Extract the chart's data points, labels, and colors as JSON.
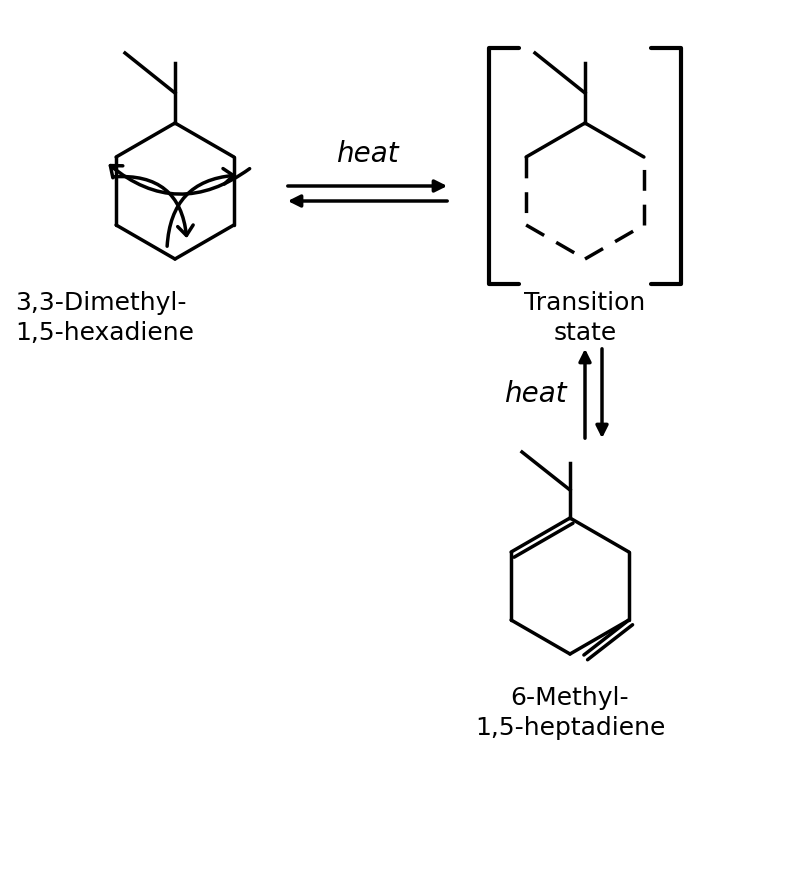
{
  "title": "",
  "background_color": "#ffffff",
  "label_left": "3,3-Dimethyl-\n1,5-hexadiene",
  "label_middle": "Transition\nstate",
  "label_bottom": "6-Methyl-\n1,5-heptadiene",
  "heat_label_top": "heat",
  "heat_label_bottom": "heat",
  "label_fontsize": 18,
  "heat_fontsize": 20,
  "line_color": "#000000",
  "lw": 2.5
}
